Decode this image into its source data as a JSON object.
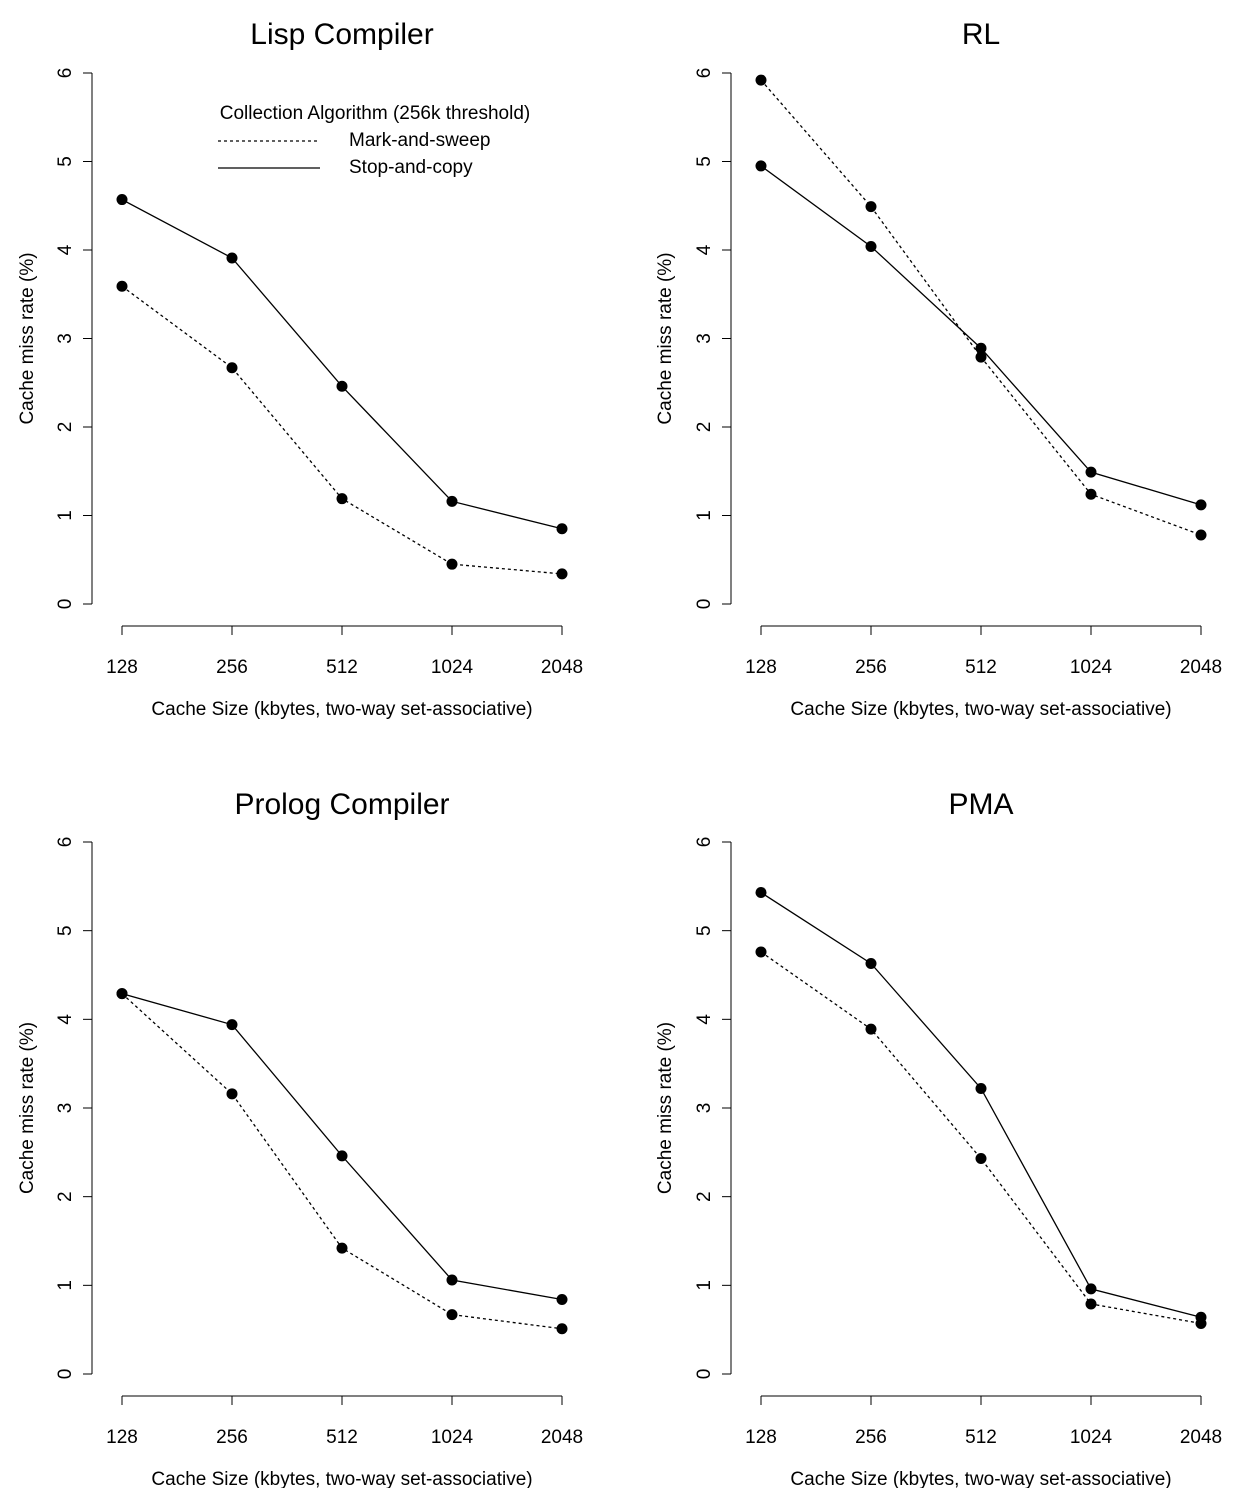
{
  "chart_data": [
    {
      "type": "line",
      "title": "Lisp Compiler",
      "xlabel": "Cache Size (kbytes, two-way set-associative)",
      "ylabel": "Cache miss rate (%)",
      "categories": [
        "128",
        "256",
        "512",
        "1024",
        "2048"
      ],
      "yticks": [
        "0",
        "1",
        "2",
        "3",
        "4",
        "5",
        "6"
      ],
      "ylim": [
        0,
        6
      ],
      "grid": false,
      "legend": {
        "title": "Collection Algorithm (256k threshold)",
        "placement": "top",
        "entries": [
          "Mark-and-sweep",
          "Stop-and-copy"
        ]
      },
      "series": [
        {
          "name": "Mark-and-sweep",
          "style": "dotted",
          "values": [
            3.59,
            2.67,
            1.19,
            0.45,
            0.34
          ]
        },
        {
          "name": "Stop-and-copy",
          "style": "solid",
          "values": [
            4.57,
            3.91,
            2.46,
            1.16,
            0.85
          ]
        }
      ]
    },
    {
      "type": "line",
      "title": "RL",
      "xlabel": "Cache Size (kbytes, two-way set-associative)",
      "ylabel": "Cache miss rate (%)",
      "categories": [
        "128",
        "256",
        "512",
        "1024",
        "2048"
      ],
      "yticks": [
        "0",
        "1",
        "2",
        "3",
        "4",
        "5",
        "6"
      ],
      "ylim": [
        0,
        6
      ],
      "grid": false,
      "series": [
        {
          "name": "Mark-and-sweep",
          "style": "dotted",
          "values": [
            5.92,
            4.49,
            2.79,
            1.24,
            0.78
          ]
        },
        {
          "name": "Stop-and-copy",
          "style": "solid",
          "values": [
            4.95,
            4.04,
            2.89,
            1.49,
            1.12
          ]
        }
      ]
    },
    {
      "type": "line",
      "title": "Prolog Compiler",
      "xlabel": "Cache Size (kbytes, two-way set-associative)",
      "ylabel": "Cache miss rate (%)",
      "categories": [
        "128",
        "256",
        "512",
        "1024",
        "2048"
      ],
      "yticks": [
        "0",
        "1",
        "2",
        "3",
        "4",
        "5",
        "6"
      ],
      "ylim": [
        0,
        6
      ],
      "grid": false,
      "series": [
        {
          "name": "Mark-and-sweep",
          "style": "dotted",
          "values": [
            4.29,
            3.16,
            1.42,
            0.67,
            0.51
          ]
        },
        {
          "name": "Stop-and-copy",
          "style": "solid",
          "values": [
            4.29,
            3.94,
            2.46,
            1.06,
            0.84
          ]
        }
      ]
    },
    {
      "type": "line",
      "title": "PMA",
      "xlabel": "Cache Size (kbytes, two-way set-associative)",
      "ylabel": "Cache miss rate (%)",
      "categories": [
        "128",
        "256",
        "512",
        "1024",
        "2048"
      ],
      "yticks": [
        "0",
        "1",
        "2",
        "3",
        "4",
        "5",
        "6"
      ],
      "ylim": [
        0,
        6
      ],
      "grid": false,
      "series": [
        {
          "name": "Mark-and-sweep",
          "style": "dotted",
          "values": [
            4.76,
            3.89,
            2.43,
            0.79,
            0.57
          ]
        },
        {
          "name": "Stop-and-copy",
          "style": "solid",
          "values": [
            5.43,
            4.63,
            3.22,
            0.96,
            0.64
          ]
        }
      ]
    }
  ]
}
